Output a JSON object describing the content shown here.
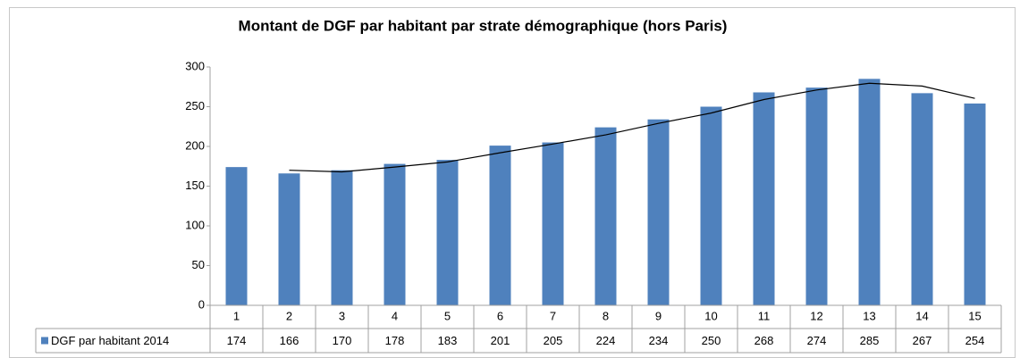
{
  "chart_data": {
    "type": "bar",
    "title": "Montant de DGF par habitant par strate démographique (hors Paris)",
    "categories": [
      "1",
      "2",
      "3",
      "4",
      "5",
      "6",
      "7",
      "8",
      "9",
      "10",
      "11",
      "12",
      "13",
      "14",
      "15"
    ],
    "series": [
      {
        "name": "DGF par habitant 2014",
        "color": "#4f81bd",
        "values": [
          174,
          166,
          170,
          178,
          183,
          201,
          205,
          224,
          234,
          250,
          268,
          274,
          285,
          267,
          254
        ]
      }
    ],
    "ylim": [
      0,
      300
    ],
    "yticks": [
      0,
      50,
      100,
      150,
      200,
      250,
      300
    ],
    "grid": false,
    "data_table": true,
    "trendline": {
      "type": "moving_average",
      "period": 2,
      "color": "#000000"
    }
  }
}
